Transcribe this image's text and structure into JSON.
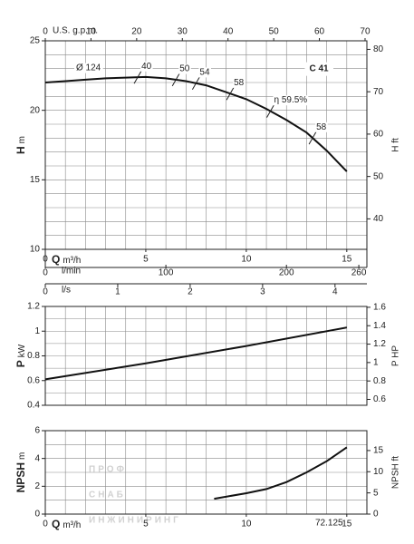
{
  "chart_data": [
    {
      "type": "line",
      "title": "C 41",
      "ylabel": "H",
      "yunit": "m",
      "y2label": "H ft",
      "xlabel": "Q",
      "xunit": "m³/h",
      "x": [
        0,
        1,
        2,
        3,
        4,
        5,
        6,
        7,
        8,
        9,
        10,
        11,
        12,
        13,
        14,
        15
      ],
      "series": [
        {
          "name": "Ø 124",
          "color": "#111111",
          "values": [
            22.0,
            22.1,
            22.2,
            22.3,
            22.35,
            22.4,
            22.3,
            22.1,
            21.8,
            21.3,
            20.8,
            20.1,
            19.3,
            18.4,
            17.1,
            15.6
          ]
        }
      ],
      "xlim": [
        0,
        16
      ],
      "xticks": [
        0,
        5,
        10,
        15
      ],
      "ylim": [
        10,
        25
      ],
      "yticks": [
        10,
        15,
        20,
        25
      ],
      "y2lim": [
        32.81,
        82.02
      ],
      "y2ticks": [
        40,
        50,
        60,
        70,
        80
      ],
      "xgrid": [
        0,
        1,
        2,
        3,
        4,
        5,
        6,
        7,
        8,
        9,
        10,
        11,
        12,
        13,
        14,
        15,
        16
      ],
      "ygrid": [
        10,
        11,
        12,
        13,
        14,
        15,
        16,
        17,
        18,
        19,
        20,
        21,
        22,
        23,
        24,
        25
      ],
      "top_axis": {
        "label": "U.S. g.p.m.",
        "lim": [
          0,
          70.4
        ],
        "ticks": [
          0,
          10,
          20,
          30,
          40,
          50,
          60,
          70
        ]
      },
      "flow_axes": [
        {
          "label": "l/min",
          "lim": [
            0,
            266.7
          ],
          "ticks": [
            0,
            100,
            200,
            260
          ]
        },
        {
          "label": "l/s",
          "lim": [
            0,
            4.44
          ],
          "ticks": [
            0,
            1,
            2,
            3,
            4
          ]
        }
      ],
      "efficiency_marks": [
        {
          "q": 4.6,
          "label": "40"
        },
        {
          "q": 6.5,
          "label": "50"
        },
        {
          "q": 7.5,
          "label": "54"
        },
        {
          "q": 9.2,
          "label": "58"
        },
        {
          "q": 11.2,
          "label": "η 59.5%"
        },
        {
          "q": 13.3,
          "label": "58"
        }
      ]
    },
    {
      "type": "line",
      "ylabel": "P",
      "yunit": "kW",
      "y2label": "P HP",
      "x": [
        0,
        5,
        10,
        15
      ],
      "series": [
        {
          "color": "#111111",
          "values": [
            0.61,
            0.74,
            0.88,
            1.03
          ]
        }
      ],
      "xlim": [
        0,
        16
      ],
      "ylim": [
        0.4,
        1.2
      ],
      "yticks": [
        0.4,
        0.6,
        0.8,
        1.0,
        1.2
      ],
      "y2lim": [
        0.536,
        1.609
      ],
      "y2ticks": [
        0.6,
        0.8,
        1.0,
        1.2,
        1.4,
        1.6
      ],
      "xgrid": [
        0,
        1,
        2,
        3,
        4,
        5,
        6,
        7,
        8,
        9,
        10,
        11,
        12,
        13,
        14,
        15,
        16
      ],
      "ygrid": [
        0.4,
        0.5,
        0.6,
        0.7,
        0.8,
        0.9,
        1.0,
        1.1,
        1.2
      ]
    },
    {
      "type": "line",
      "ylabel": "NPSH",
      "yunit": "m",
      "y2label": "NPSH ft",
      "xlabel": "Q",
      "xunit": "m³/h",
      "note": "72.125",
      "x": [
        8.4,
        10,
        11,
        12,
        13,
        14,
        15
      ],
      "series": [
        {
          "color": "#111111",
          "values": [
            1.1,
            1.5,
            1.8,
            2.3,
            3.0,
            3.8,
            4.8
          ]
        }
      ],
      "xlim": [
        0,
        16
      ],
      "xticks": [
        0,
        5,
        10,
        15
      ],
      "ylim": [
        0,
        6
      ],
      "yticks": [
        0,
        2,
        4,
        6
      ],
      "y2lim": [
        0,
        19.69
      ],
      "y2ticks": [
        0,
        5,
        10,
        15
      ],
      "xgrid": [
        0,
        1,
        2,
        3,
        4,
        5,
        6,
        7,
        8,
        9,
        10,
        11,
        12,
        13,
        14,
        15,
        16
      ],
      "ygrid": [
        0,
        1,
        2,
        3,
        4,
        5,
        6
      ]
    }
  ],
  "watermark": [
    "ПРОФ",
    "СНАБ",
    "ИНЖИНИРИНГ"
  ]
}
